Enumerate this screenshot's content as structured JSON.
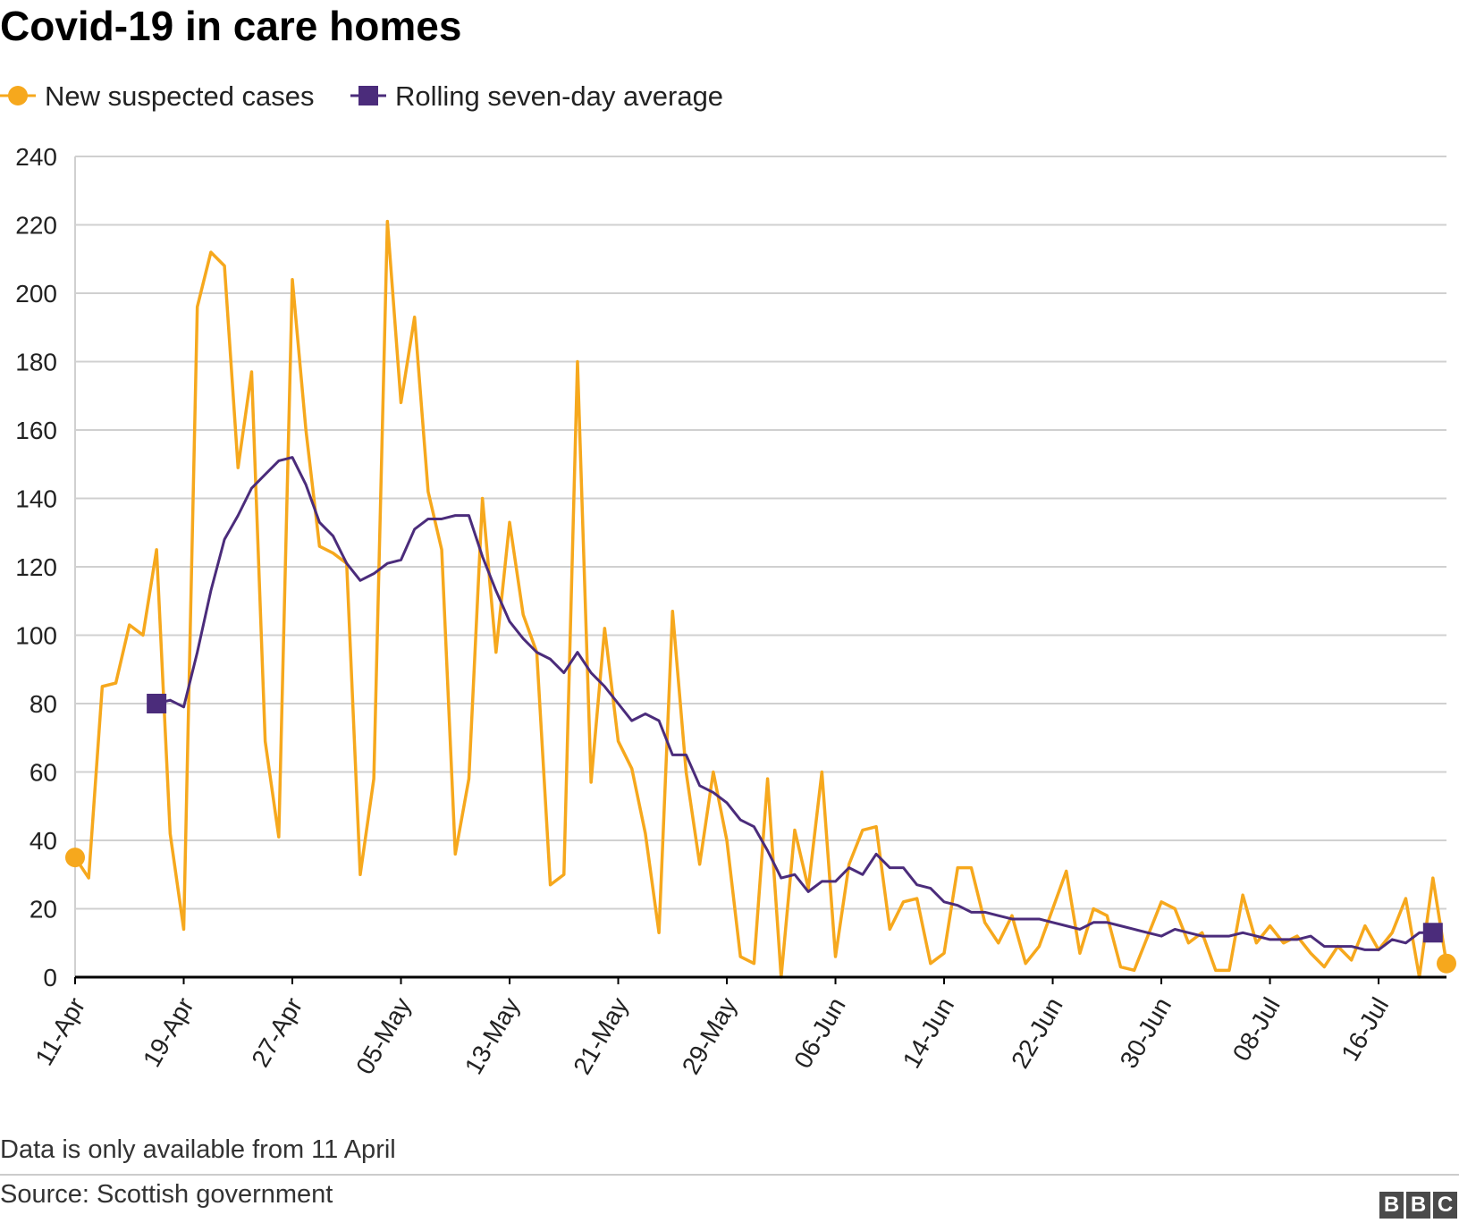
{
  "title": "Covid-19 in care homes",
  "legend": {
    "cases_label": "New suspected cases",
    "average_label": "Rolling seven-day average"
  },
  "colors": {
    "cases": "#f6a81d",
    "average": "#4b2c7b",
    "grid": "#d0d0d0",
    "axis": "#000000"
  },
  "footer": {
    "note": "Data is only available from 11 April",
    "source": "Source: Scottish government",
    "logo_letters": [
      "B",
      "B",
      "C"
    ]
  },
  "chart_data": {
    "type": "line",
    "title": "Covid-19 in care homes",
    "xlabel": "",
    "ylabel": "",
    "ylim": [
      0,
      240
    ],
    "yticks": [
      0,
      20,
      40,
      60,
      80,
      100,
      120,
      140,
      160,
      180,
      200,
      220,
      240
    ],
    "grid": true,
    "legend_position": "top-left",
    "x_start": "11-Apr",
    "day_count": 102,
    "xtick_labels": [
      "11-Apr",
      "19-Apr",
      "27-Apr",
      "05-May",
      "13-May",
      "21-May",
      "29-May",
      "06-Jun",
      "14-Jun",
      "22-Jun",
      "30-Jun",
      "08-Jul",
      "16-Jul"
    ],
    "xtick_day_index": [
      0,
      8,
      16,
      24,
      32,
      40,
      48,
      56,
      64,
      72,
      80,
      88,
      96
    ],
    "series": [
      {
        "name": "New suspected cases",
        "start_index": 0,
        "values": [
          35,
          29,
          85,
          86,
          103,
          100,
          125,
          42,
          14,
          196,
          212,
          208,
          149,
          177,
          69,
          41,
          204,
          160,
          126,
          124,
          121,
          30,
          58,
          221,
          168,
          193,
          142,
          125,
          36,
          58,
          140,
          95,
          133,
          106,
          95,
          27,
          30,
          180,
          57,
          102,
          69,
          61,
          42,
          13,
          107,
          60,
          33,
          60,
          40,
          6,
          4,
          58,
          0,
          43,
          26,
          60,
          6,
          33,
          43,
          44,
          14,
          22,
          23,
          4,
          7,
          32,
          32,
          16,
          10,
          18,
          4,
          9,
          20,
          31,
          7,
          20,
          18,
          3,
          2,
          12,
          22,
          20,
          10,
          13,
          2,
          2,
          24,
          10,
          15,
          10,
          12,
          7,
          3,
          9,
          5,
          15,
          8,
          13,
          23,
          0,
          29,
          4
        ]
      },
      {
        "name": "Rolling seven-day average",
        "start_index": 6,
        "values": [
          80,
          81,
          79,
          95,
          113,
          128,
          135,
          143,
          147,
          151,
          152,
          144,
          133,
          129,
          121,
          116,
          118,
          121,
          122,
          131,
          134,
          134,
          135,
          135,
          123,
          113,
          104,
          99,
          95,
          93,
          89,
          95,
          89,
          85,
          80,
          75,
          77,
          75,
          65,
          65,
          56,
          54,
          51,
          46,
          44,
          37,
          29,
          30,
          25,
          28,
          28,
          32,
          30,
          36,
          32,
          32,
          27,
          26,
          22,
          21,
          19,
          19,
          18,
          17,
          17,
          17,
          16,
          15,
          14,
          16,
          16,
          15,
          14,
          13,
          12,
          14,
          13,
          12,
          12,
          12,
          13,
          12,
          11,
          11,
          11,
          12,
          9,
          9,
          9,
          8,
          8,
          11,
          10,
          13,
          13
        ]
      }
    ]
  }
}
